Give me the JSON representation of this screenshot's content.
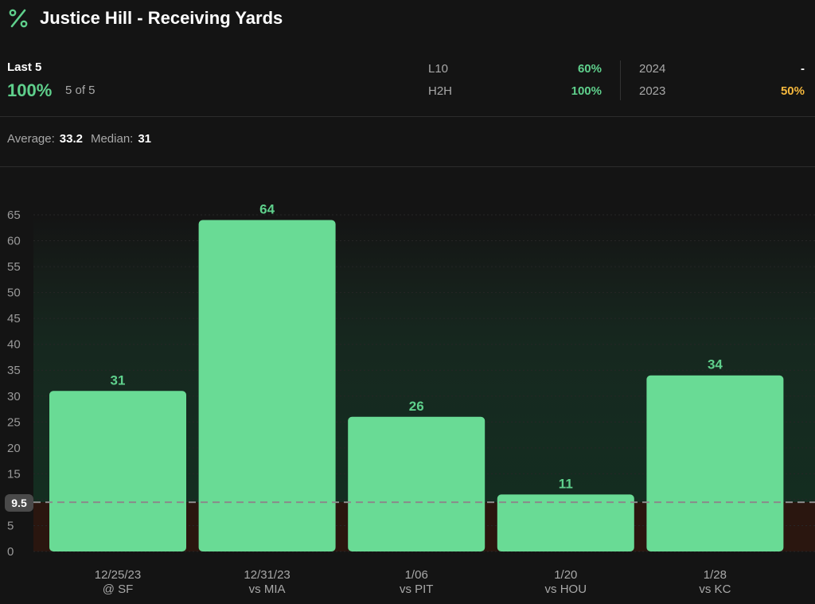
{
  "header": {
    "icon": "percent-icon",
    "title": "Justice Hill - Receiving Yards"
  },
  "summary": {
    "label": "Last 5",
    "pct": "100%",
    "count": "5 of 5",
    "stats": [
      {
        "label": "L10",
        "value": "60%",
        "color": "#5fd08c"
      },
      {
        "label": "H2H",
        "value": "100%",
        "color": "#5fd08c"
      },
      {
        "label": "2024",
        "value": "-",
        "color": "#ffffff"
      },
      {
        "label": "2023",
        "value": "50%",
        "color": "#f5b83d"
      }
    ]
  },
  "averages": {
    "average_label": "Average:",
    "average_value": "33.2",
    "median_label": "Median:",
    "median_value": "31"
  },
  "chart_data": {
    "type": "bar",
    "categories": [
      {
        "date": "12/25/23",
        "opp": "@ SF"
      },
      {
        "date": "12/31/23",
        "opp": "vs MIA"
      },
      {
        "date": "1/06",
        "opp": "vs PIT"
      },
      {
        "date": "1/20",
        "opp": "vs HOU"
      },
      {
        "date": "1/28",
        "opp": "vs KC"
      }
    ],
    "values": [
      31,
      64,
      26,
      11,
      34
    ],
    "ylim": [
      0,
      65
    ],
    "yticks": [
      0,
      5,
      10,
      15,
      20,
      25,
      30,
      35,
      40,
      45,
      50,
      55,
      60,
      65
    ],
    "threshold": 9.5,
    "threshold_label": "9.5",
    "bar_color": "#69db95",
    "label_color": "#5fd08c",
    "grid": true
  }
}
